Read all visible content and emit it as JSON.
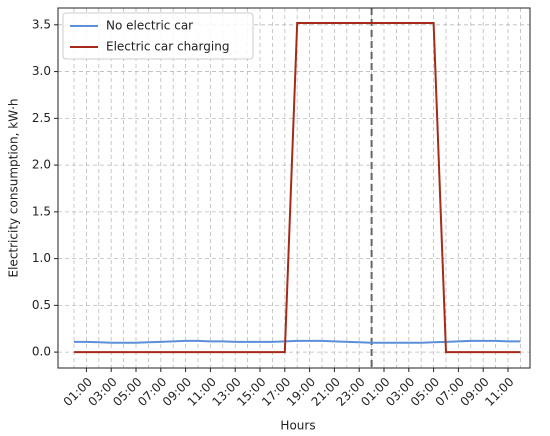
{
  "chart_data": {
    "type": "line",
    "xlabel": "Hours",
    "ylabel": "Electricity consumption, kW·h",
    "categories": [
      null,
      "01:00",
      null,
      "03:00",
      null,
      "05:00",
      null,
      "07:00",
      null,
      "09:00",
      null,
      "11:00",
      null,
      "13:00",
      null,
      "15:00",
      null,
      "17:00",
      null,
      "19:00",
      null,
      "21:00",
      null,
      "23:00",
      null,
      "01:00",
      null,
      "03:00",
      null,
      "05:00",
      null,
      "07:00",
      null,
      "09:00",
      null,
      "11:00",
      null
    ],
    "series": [
      {
        "name": "No electric car",
        "color": "#5b8fd9",
        "values": [
          0.11,
          0.11,
          0.105,
          0.1,
          0.1,
          0.1,
          0.105,
          0.11,
          0.115,
          0.12,
          0.12,
          0.115,
          0.115,
          0.11,
          0.11,
          0.11,
          0.11,
          0.115,
          0.12,
          0.12,
          0.12,
          0.115,
          0.11,
          0.105,
          0.1,
          0.1,
          0.1,
          0.1,
          0.1,
          0.105,
          0.11,
          0.115,
          0.12,
          0.12,
          0.12,
          0.115,
          0.115
        ]
      },
      {
        "name": "Electric car charging",
        "color": "#a52a1a",
        "values": [
          0,
          0,
          0,
          0,
          0,
          0,
          0,
          0,
          0,
          0,
          0,
          0,
          0,
          0,
          0,
          0,
          0,
          0,
          3.52,
          3.52,
          3.52,
          3.52,
          3.52,
          3.52,
          3.52,
          3.52,
          3.52,
          3.52,
          3.52,
          3.52,
          0,
          0,
          0,
          0,
          0,
          0,
          0
        ]
      }
    ],
    "vline": 24,
    "ylim": [
      -0.17,
      3.68
    ],
    "yticks": [
      {
        "value": 0,
        "label": "0.0"
      },
      {
        "value": 0.5,
        "label": "0.5"
      },
      {
        "value": 1,
        "label": "1.0"
      },
      {
        "value": 1.5,
        "label": "1.5"
      },
      {
        "value": 2,
        "label": "2.0"
      },
      {
        "value": 2.5,
        "label": "2.5"
      },
      {
        "value": 3,
        "label": "3.0"
      },
      {
        "value": 3.5,
        "label": "3.5"
      }
    ],
    "grid": true,
    "legend": "upper left"
  }
}
